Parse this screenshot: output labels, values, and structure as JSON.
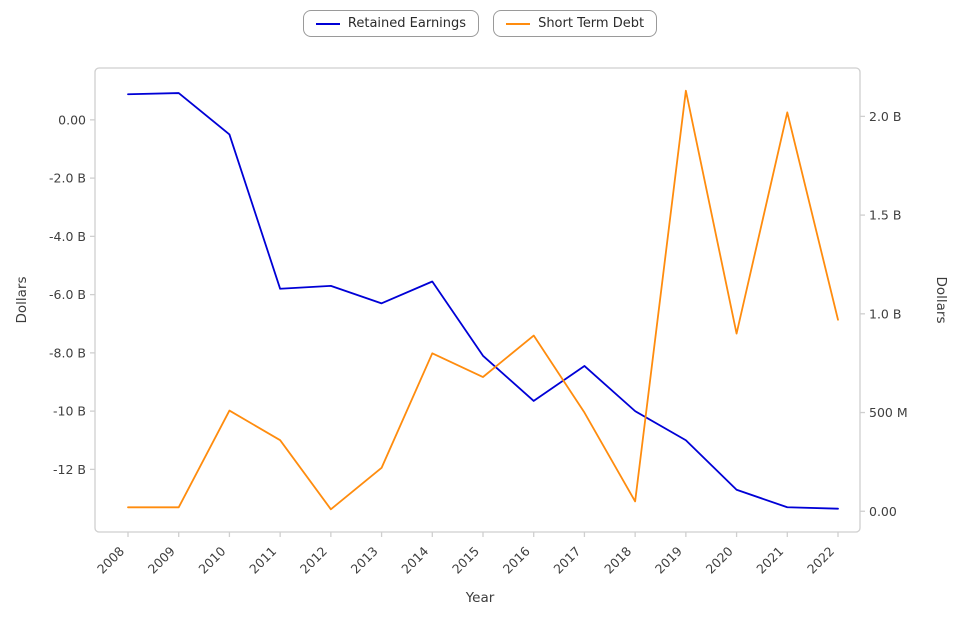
{
  "chart_data": {
    "type": "line",
    "title": "",
    "xlabel": "Year",
    "ylabel_left": "Dollars",
    "ylabel_right": "Dollars",
    "grid": false,
    "legend_position": "top-center",
    "categories": [
      2008,
      2009,
      2010,
      2011,
      2012,
      2013,
      2014,
      2015,
      2016,
      2017,
      2018,
      2019,
      2020,
      2021,
      2022
    ],
    "series": [
      {
        "name": "Retained Earnings",
        "axis": "left",
        "color": "#0000d6",
        "units": "billions of dollars",
        "values_billions": [
          0.88,
          0.92,
          -0.5,
          -5.8,
          -5.7,
          -6.3,
          -5.55,
          -8.1,
          -9.65,
          -8.45,
          -10.0,
          -11.0,
          -12.7,
          -13.3,
          -13.35
        ]
      },
      {
        "name": "Short Term Debt",
        "axis": "right",
        "color": "#ff8c0e",
        "units": "billions of dollars",
        "values_billions": [
          0.02,
          0.02,
          0.51,
          0.36,
          0.01,
          0.22,
          0.8,
          0.68,
          0.89,
          0.5,
          0.05,
          2.13,
          0.9,
          2.02,
          0.97
        ]
      }
    ],
    "left_axis": {
      "ticks": [
        "0.00",
        "-2.0 B",
        "-4.0 B",
        "-6.0 B",
        "-8.0 B",
        "-10 B",
        "-12 B"
      ],
      "tick_values": [
        0,
        -2,
        -4,
        -6,
        -8,
        -10,
        -12
      ],
      "range": [
        -14.15,
        1.78
      ]
    },
    "right_axis": {
      "ticks": [
        "2.0 B",
        "1.5 B",
        "1.0 B",
        "500 M",
        "0.00"
      ],
      "tick_values": [
        2.0,
        1.5,
        1.0,
        0.5,
        0.0
      ],
      "range": [
        -0.105,
        2.245
      ]
    }
  }
}
